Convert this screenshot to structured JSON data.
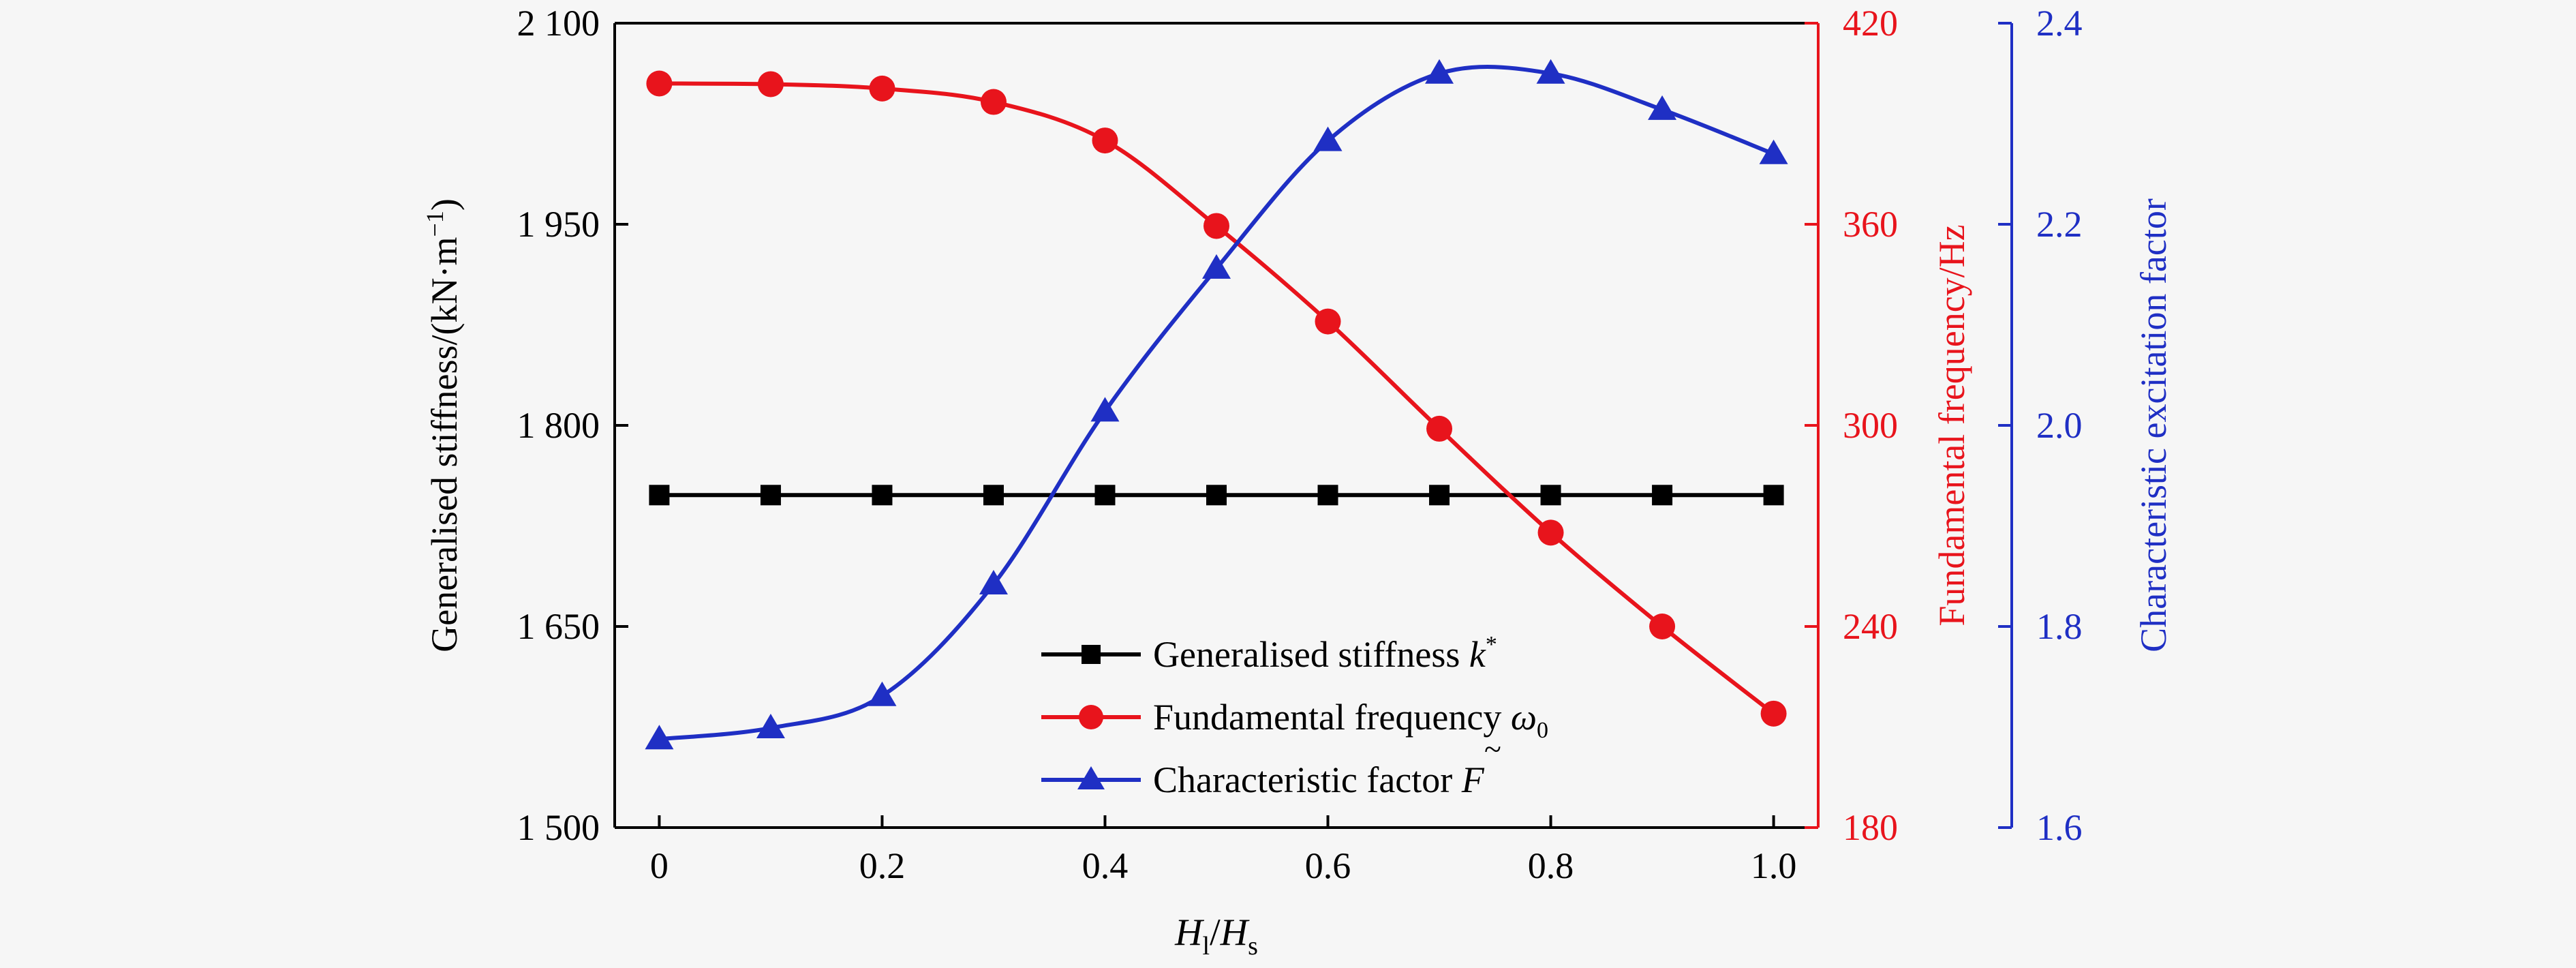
{
  "chart_data": {
    "type": "line",
    "x": [
      0,
      0.1,
      0.2,
      0.3,
      0.4,
      0.5,
      0.6,
      0.7,
      0.8,
      0.9,
      1.0
    ],
    "xlim": [
      -0.04,
      1.04
    ],
    "x_ticks": [
      "0",
      "0.2",
      "0.4",
      "0.6",
      "0.8",
      "1.0"
    ],
    "x_tick_values": [
      0,
      0.2,
      0.4,
      0.6,
      0.8,
      1.0
    ],
    "xlabel": {
      "main1": "H",
      "sub1": "l",
      "slash": "/",
      "main2": "H",
      "sub2": "s"
    },
    "axes": {
      "left": {
        "label": "Generalised stiffness/(kN·m",
        "label_sup": "−1",
        "label_close": ")",
        "ylim": [
          1500,
          2100
        ],
        "ticks": [
          "1 500",
          "1 650",
          "1 800",
          "1 950",
          "2 100"
        ],
        "tick_values": [
          1500,
          1650,
          1800,
          1950,
          2100
        ],
        "color": "#000000"
      },
      "right1": {
        "label": "Fundamental frequency/Hz",
        "ylim": [
          180,
          420
        ],
        "ticks": [
          "180",
          "240",
          "300",
          "360",
          "420"
        ],
        "tick_values": [
          180,
          240,
          300,
          360,
          420
        ],
        "color": "#e8141c"
      },
      "right2": {
        "label": "Characteristic excitation factor",
        "ylim": [
          1.6,
          2.4
        ],
        "ticks": [
          "1.6",
          "1.8",
          "2.0",
          "2.2",
          "2.4"
        ],
        "tick_values": [
          1.6,
          1.8,
          2.0,
          2.2,
          2.4
        ],
        "color": "#1f2fc4"
      }
    },
    "series": [
      {
        "name": "Generalised stiffness",
        "symbol": "k",
        "symbol_sup": "*",
        "axis": "left",
        "marker": "square",
        "color": "#000000",
        "values": [
          1748,
          1748,
          1748,
          1748,
          1748,
          1748,
          1748,
          1748,
          1748,
          1748,
          1748
        ]
      },
      {
        "name": "Fundamental frequency",
        "symbol": "ω",
        "symbol_sub": "0",
        "axis": "right1",
        "marker": "circle",
        "color": "#e8141c",
        "values": [
          402,
          401.8,
          400.5,
          396.5,
          385,
          359.5,
          331,
          299,
          268,
          240,
          214
        ]
      },
      {
        "name": "Characteristic factor",
        "symbol": "F",
        "symbol_over": "~",
        "axis": "right2",
        "marker": "triangle",
        "color": "#1f2fc4",
        "values": [
          1.688,
          1.699,
          1.731,
          1.842,
          2.014,
          2.156,
          2.283,
          2.35,
          2.35,
          2.314,
          2.27
        ]
      }
    ],
    "legend_position": "bottom-center"
  }
}
